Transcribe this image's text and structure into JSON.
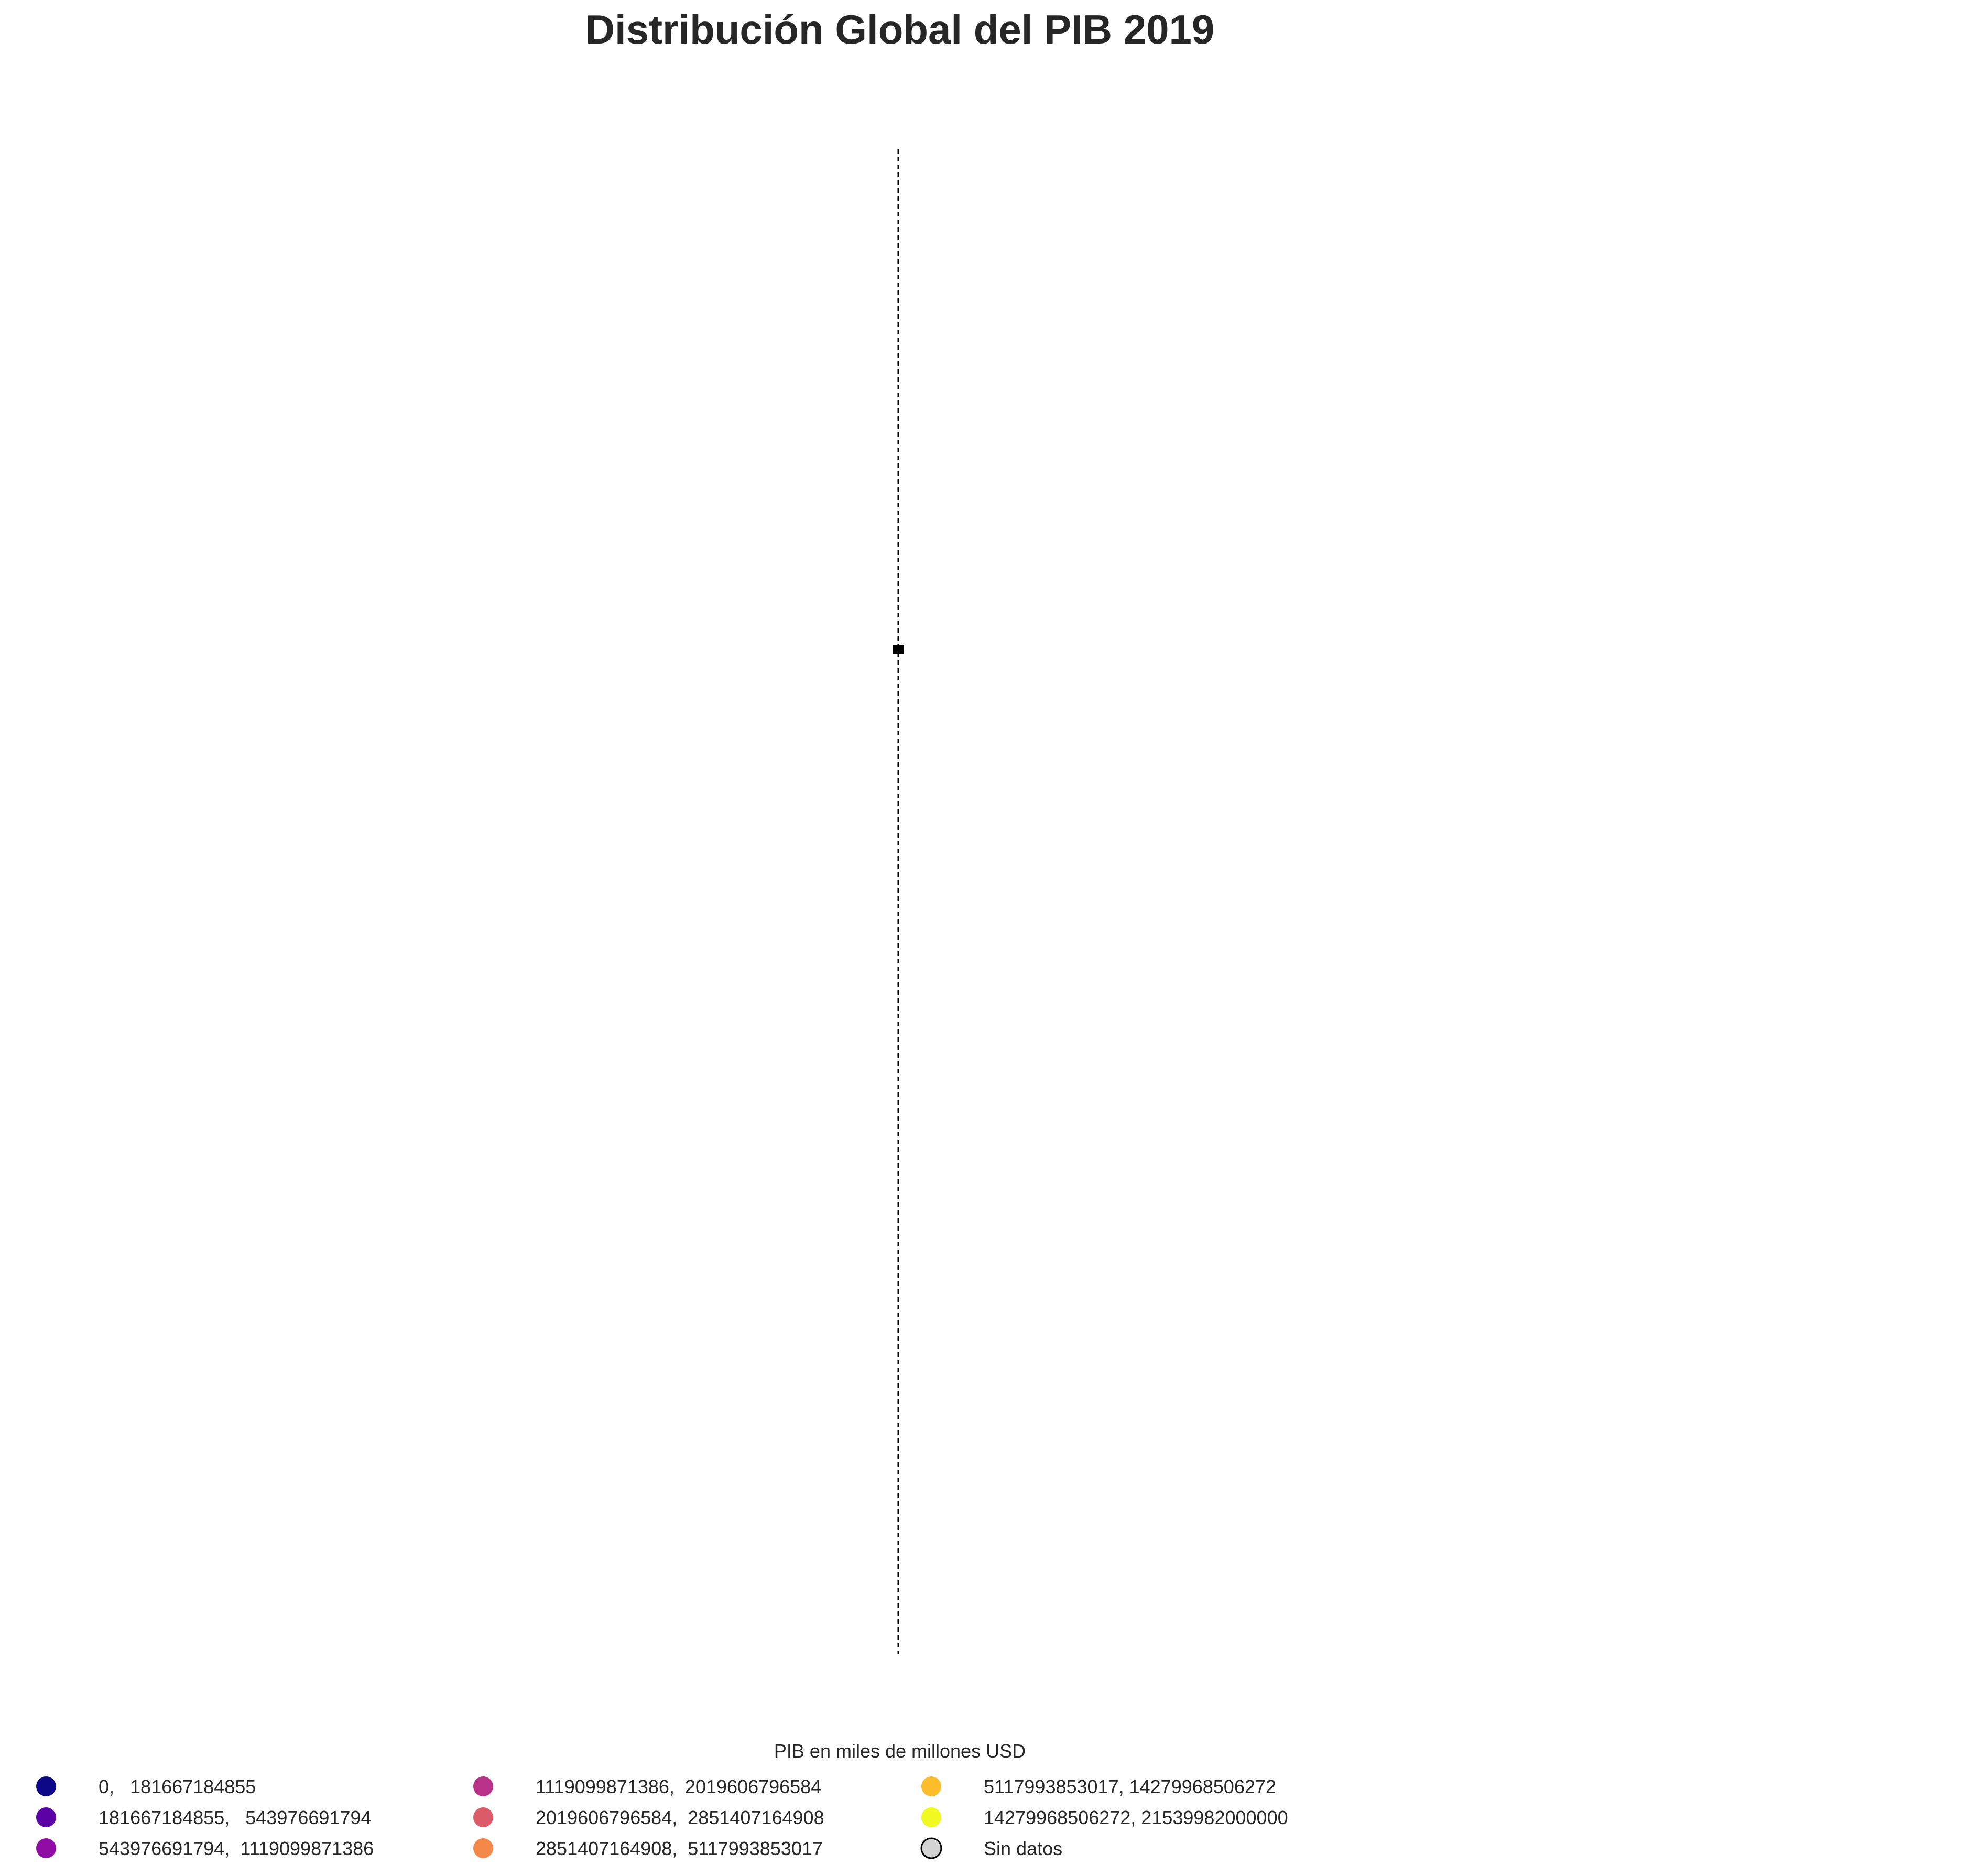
{
  "chart_data": {
    "type": "map",
    "title": "Distribución Global del PIB 2019",
    "legend": {
      "title": "PIB en miles de millones USD",
      "placement": "bottom",
      "columns": 4,
      "entries": [
        {
          "label": "0,   181667184855",
          "color": "#0d0887"
        },
        {
          "label": "181667184855,   543976691794",
          "color": "#5c01a6"
        },
        {
          "label": "543976691794,  1119099871386",
          "color": "#8f0da4"
        },
        {
          "label": "1119099871386,  2019606796584",
          "color": "#b83289"
        },
        {
          "label": "2019606796584,  2851407164908",
          "color": "#db5c68"
        },
        {
          "label": "2851407164908,  5117993853017",
          "color": "#f48849"
        },
        {
          "label": "5117993853017, 14279968506272",
          "color": "#febd2a"
        },
        {
          "label": "14279968506272, 21539982000000",
          "color": "#f0f921"
        },
        {
          "label": "Sin datos",
          "color": "#d3d3d3",
          "outlined": true
        }
      ]
    },
    "axes_visible": false,
    "grid": false
  }
}
